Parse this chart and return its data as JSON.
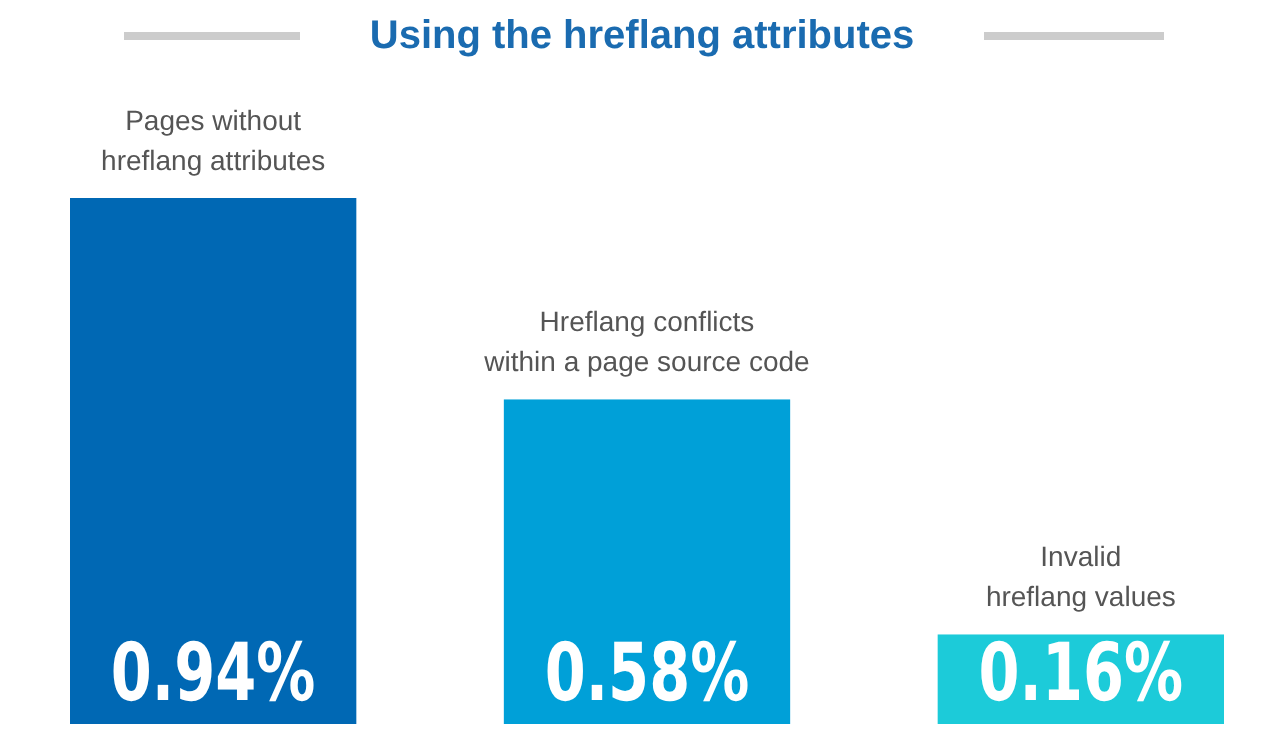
{
  "chart_data": {
    "type": "bar",
    "title": "Using the hreflang attributes",
    "categories": [
      "Pages without hreflang attributes",
      "Hreflang conflicts within a page source code",
      "Invalid hreflang values"
    ],
    "values": [
      0.94,
      0.58,
      0.16
    ],
    "colors": [
      "#0068b4",
      "#00a0d8",
      "#1ccbd9"
    ],
    "value_labels": [
      "0.94%",
      "0.58%",
      "0.16%"
    ],
    "ylim": [
      0,
      0.94
    ],
    "tick_labels": "x"
  }
}
